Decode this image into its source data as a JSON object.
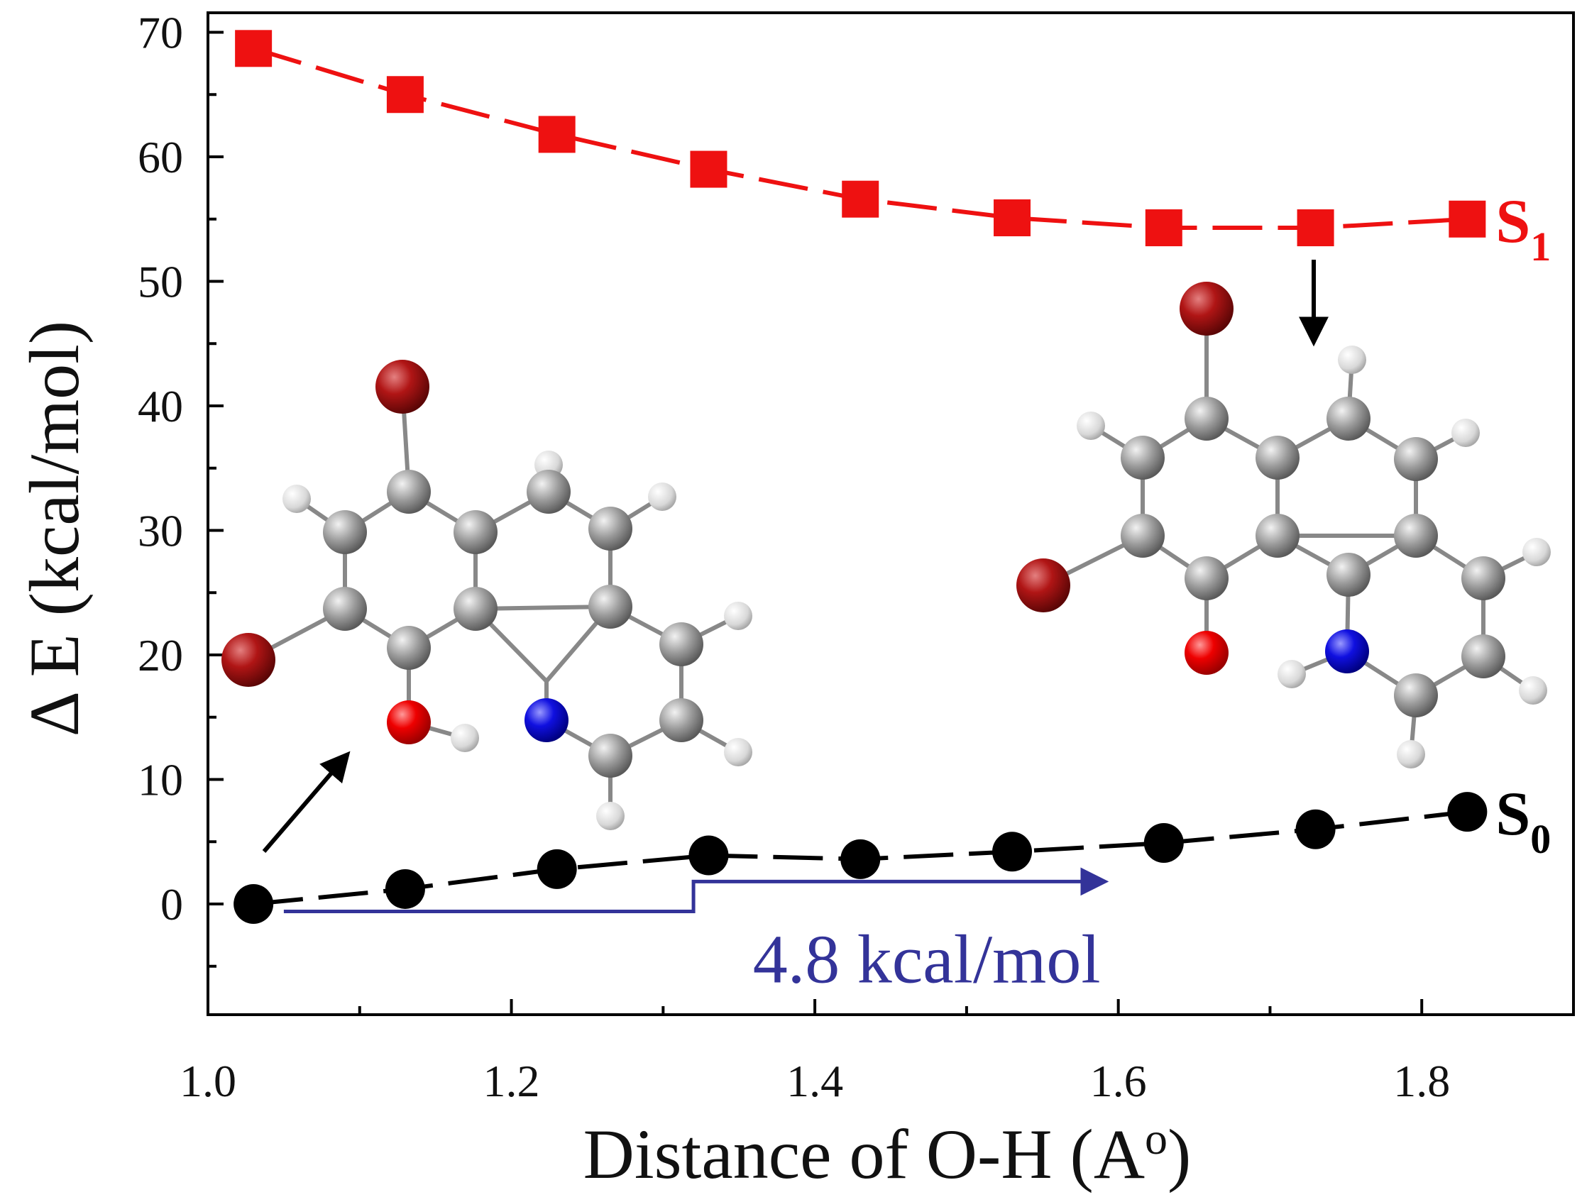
{
  "chart_data": {
    "type": "line",
    "title": "",
    "xlabel": "Distance of O-H (A",
    "xlabel_superscript": "o",
    "xlabel_close": ")",
    "ylabel": "Δ E (kcal/mol)",
    "xlim": [
      1.0,
      1.9
    ],
    "ylim": [
      -9,
      70
    ],
    "xticks": [
      1.0,
      1.2,
      1.4,
      1.6,
      1.8
    ],
    "xtick_labels": [
      "1.0",
      "1.2",
      "1.4",
      "1.6",
      "1.8"
    ],
    "yticks": [
      0,
      10,
      20,
      30,
      40,
      50,
      60,
      70
    ],
    "ytick_labels": [
      "0",
      "10",
      "20",
      "30",
      "40",
      "50",
      "60",
      "70"
    ],
    "grid": false,
    "x": [
      1.03,
      1.13,
      1.23,
      1.33,
      1.43,
      1.53,
      1.63,
      1.73,
      1.83
    ],
    "series": [
      {
        "name": "S1",
        "label_main": "S",
        "label_sub": "1",
        "color": "#ee1111",
        "marker": "square",
        "values": [
          68.7,
          65.0,
          61.8,
          59.0,
          56.6,
          55.1,
          54.3,
          54.3,
          55.0
        ]
      },
      {
        "name": "S0",
        "label_main": "S",
        "label_sub": "0",
        "color": "#000000",
        "marker": "circle",
        "values": [
          0.0,
          1.2,
          2.8,
          3.9,
          3.6,
          4.2,
          4.9,
          6.0,
          7.4
        ]
      }
    ],
    "annotations": [
      {
        "text": "4.8 kcal/mol",
        "color": "#333399",
        "type": "step-arrow",
        "from_x": 1.05,
        "step_x": 1.32,
        "to_x": 1.59,
        "from_y": -0.6,
        "to_y": 1.8
      }
    ],
    "insets": [
      {
        "name": "enol-structure",
        "description_hidden": true
      },
      {
        "name": "keto-structure",
        "description_hidden": true
      }
    ]
  }
}
